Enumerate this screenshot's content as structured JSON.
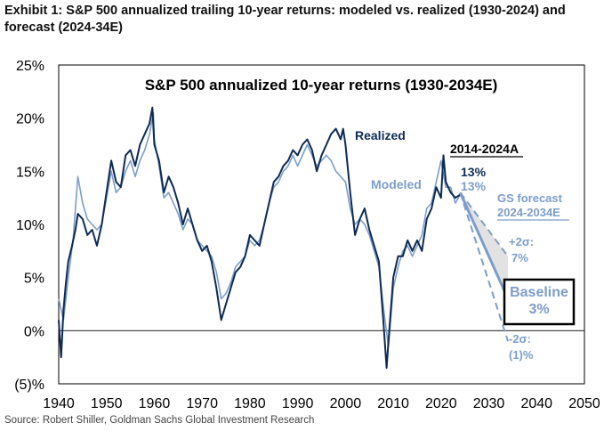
{
  "exhibit": {
    "title": "Exhibit 1: S&P 500 annualized trailing 10-year returns: modeled vs. realized (1930-2024) and forecast (2024-34E)",
    "source": "Source: Robert Shiller, Goldman Sachs Global Investment Research"
  },
  "chart_data": {
    "type": "line",
    "title": "S&P 500 annualized 10-year returns (1930-2034E)",
    "xlabel": "",
    "ylabel": "",
    "xlim": [
      1940,
      2050
    ],
    "ylim": [
      -5,
      25
    ],
    "x_ticks": [
      1940,
      1950,
      1960,
      1970,
      1980,
      1990,
      2000,
      2010,
      2020,
      2030,
      2040,
      2050
    ],
    "y_ticks": [
      -5,
      0,
      5,
      10,
      15,
      20,
      25
    ],
    "y_tick_labels": [
      "(5)%",
      "0%",
      "5%",
      "10%",
      "15%",
      "20%",
      "25%"
    ],
    "grid": false,
    "series": [
      {
        "name": "Realized",
        "color": "#0d2b55",
        "x": [
          1940,
          1940.5,
          1941,
          1941.5,
          1942,
          1942.8,
          1943.5,
          1944,
          1945,
          1946,
          1947,
          1948,
          1949,
          1950,
          1951,
          1952,
          1953,
          1954,
          1955,
          1956,
          1957,
          1958,
          1959,
          1959.6,
          1960,
          1961,
          1962,
          1963,
          1964,
          1965,
          1966,
          1967,
          1968,
          1969,
          1970,
          1971,
          1972,
          1973,
          1974,
          1975,
          1976,
          1977,
          1978,
          1979,
          1980,
          1981,
          1982,
          1983,
          1984,
          1985,
          1986,
          1987,
          1988,
          1989,
          1990,
          1991,
          1992,
          1993,
          1994,
          1995,
          1996,
          1997,
          1998,
          1999,
          1999.5,
          2000,
          2001,
          2002,
          2003,
          2004,
          2005,
          2006,
          2007,
          2008,
          2008.6,
          2009,
          2009.5,
          2010,
          2011,
          2012,
          2013,
          2014,
          2015,
          2016,
          2017,
          2018,
          2019,
          2020,
          2020.5,
          2021,
          2022,
          2023,
          2024
        ],
        "values": [
          1.0,
          -2.5,
          2.0,
          4.5,
          6.5,
          8.0,
          9.5,
          11.0,
          10.5,
          9.0,
          9.5,
          8.0,
          10.0,
          13.0,
          16.0,
          14.0,
          13.5,
          16.5,
          17.0,
          15.5,
          17.5,
          18.5,
          19.5,
          21.0,
          17.5,
          16.0,
          13.0,
          14.5,
          13.5,
          12.0,
          10.0,
          11.5,
          10.0,
          8.5,
          7.5,
          8.0,
          6.5,
          4.0,
          1.0,
          2.5,
          4.0,
          5.5,
          6.0,
          7.0,
          9.0,
          8.5,
          8.0,
          10.0,
          12.0,
          14.0,
          14.5,
          15.5,
          16.0,
          17.0,
          16.5,
          17.5,
          18.0,
          17.0,
          15.0,
          16.5,
          17.5,
          18.5,
          19.0,
          18.0,
          19.0,
          17.5,
          13.0,
          9.0,
          10.5,
          11.5,
          9.5,
          8.0,
          6.5,
          0.5,
          -3.5,
          -1.0,
          2.0,
          5.0,
          7.0,
          7.0,
          8.5,
          7.5,
          8.5,
          7.5,
          10.5,
          11.5,
          13.5,
          12.5,
          16.5,
          14.0,
          13.0,
          12.5,
          12.8
        ]
      },
      {
        "name": "Modeled",
        "color": "#7d9dc9",
        "x": [
          1940,
          1941,
          1942,
          1943,
          1944,
          1945,
          1946,
          1947,
          1948,
          1949,
          1950,
          1951,
          1952,
          1953,
          1954,
          1955,
          1956,
          1957,
          1958,
          1959,
          1959.8,
          1960,
          1961,
          1962,
          1963,
          1964,
          1965,
          1966,
          1967,
          1968,
          1969,
          1970,
          1971,
          1972,
          1973,
          1974,
          1975,
          1976,
          1977,
          1978,
          1979,
          1980,
          1981,
          1982,
          1983,
          1984,
          1985,
          1986,
          1987,
          1988,
          1989,
          1990,
          1991,
          1992,
          1993,
          1994,
          1995,
          1996,
          1997,
          1998,
          1999,
          2000,
          2001,
          2002,
          2003,
          2004,
          2005,
          2006,
          2007,
          2008,
          2009,
          2010,
          2011,
          2012,
          2013,
          2014,
          2015,
          2016,
          2017,
          2018,
          2019,
          2020,
          2021,
          2022,
          2023,
          2024
        ],
        "values": [
          3.0,
          1.0,
          5.0,
          8.5,
          14.5,
          12.0,
          10.5,
          10.0,
          9.5,
          10.0,
          12.5,
          15.0,
          13.0,
          13.5,
          15.0,
          16.0,
          14.5,
          16.0,
          17.0,
          18.5,
          20.5,
          18.0,
          15.5,
          12.5,
          13.0,
          12.0,
          11.0,
          9.5,
          10.5,
          10.0,
          8.5,
          8.0,
          7.5,
          7.0,
          5.5,
          3.0,
          3.5,
          4.5,
          6.0,
          6.5,
          7.0,
          8.5,
          8.0,
          8.5,
          10.0,
          12.0,
          13.5,
          14.0,
          15.0,
          15.5,
          16.5,
          15.5,
          16.5,
          17.5,
          16.5,
          15.5,
          16.0,
          16.5,
          16.0,
          15.0,
          14.5,
          14.0,
          11.5,
          10.0,
          10.5,
          10.0,
          9.0,
          7.5,
          6.0,
          2.0,
          -1.5,
          4.0,
          6.0,
          7.5,
          8.0,
          7.0,
          8.0,
          9.0,
          11.5,
          12.0,
          14.0,
          16.0,
          13.5,
          13.5,
          12.0,
          12.8
        ]
      }
    ],
    "forecast": {
      "label": "GS forecast 2024-2034E",
      "start": {
        "x": 2024,
        "y": 13
      },
      "end_x": 2034,
      "baseline": 3,
      "upper": 7,
      "lower": -1
    },
    "annotations": {
      "realized_label": "Realized",
      "modeled_label": "Modeled",
      "period_label": "2014-2024A",
      "realized_value": "13%",
      "modeled_value": "13%",
      "forecast_line1": "GS forecast",
      "forecast_line2": "2024-2034E",
      "upper_line1": "+2σ:",
      "upper_line2": "7%",
      "baseline_line1": "Baseline",
      "baseline_line2": "3%",
      "lower_line1": "-2σ:",
      "lower_line2": "(1)%"
    }
  }
}
